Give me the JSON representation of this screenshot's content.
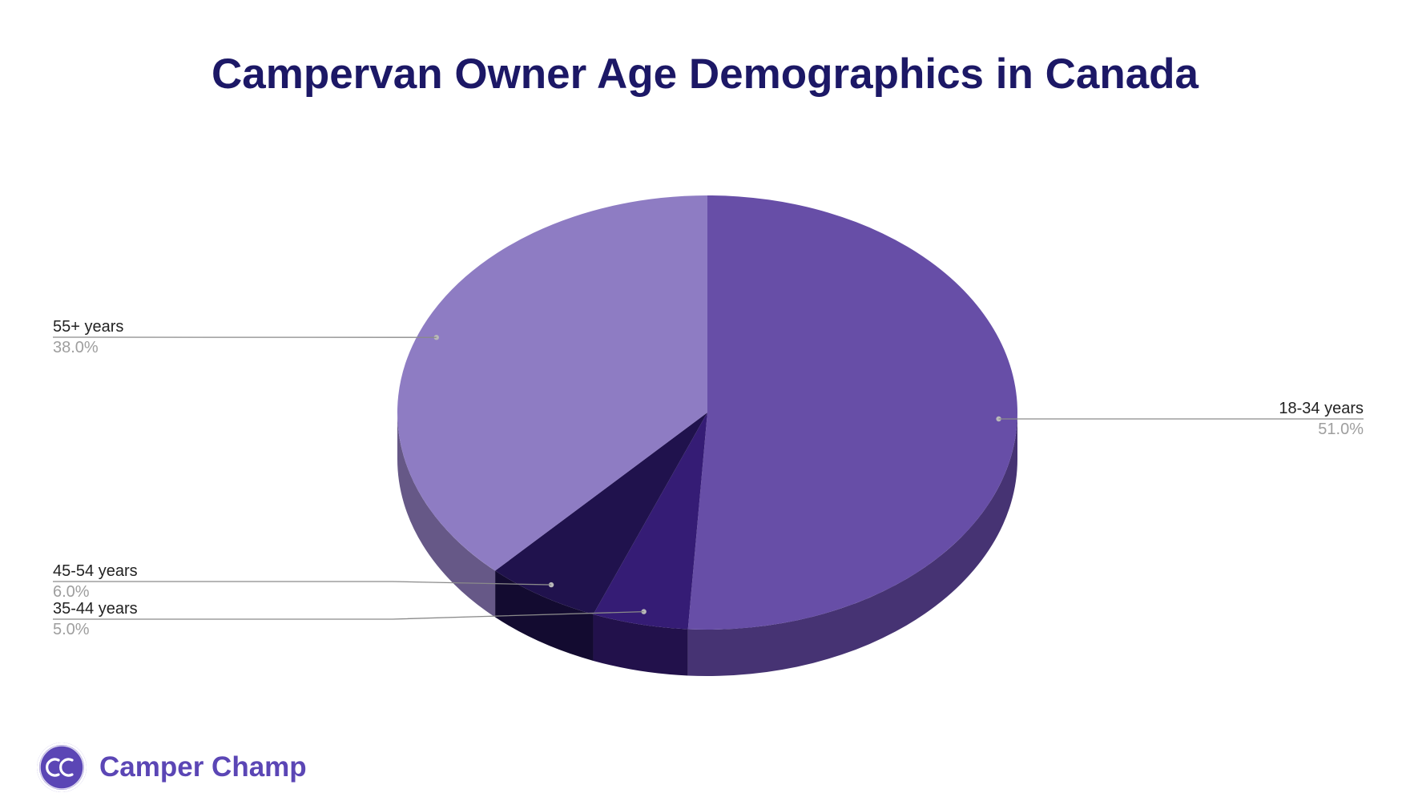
{
  "chart_data": {
    "type": "pie",
    "title": "Campervan Owner Age Demographics in Canada",
    "slices": [
      {
        "label": "18-34 years",
        "value": 51.0,
        "display": "51.0%",
        "color": "#674ea7",
        "side_color": "#463373"
      },
      {
        "label": "35-44 years",
        "value": 5.0,
        "display": "5.0%",
        "color": "#351c75",
        "side_color": "#22114b"
      },
      {
        "label": "45-54 years",
        "value": 6.0,
        "display": "6.0%",
        "color": "#20124d",
        "side_color": "#130b30"
      },
      {
        "label": "55+ years",
        "value": 38.0,
        "display": "38.0%",
        "color": "#8e7cc3",
        "side_color": "#665887"
      }
    ],
    "legend": "none",
    "label_style": "leader lines with name and percentage"
  },
  "brand": {
    "logo_text": "CC",
    "name": "Camper Champ"
  }
}
